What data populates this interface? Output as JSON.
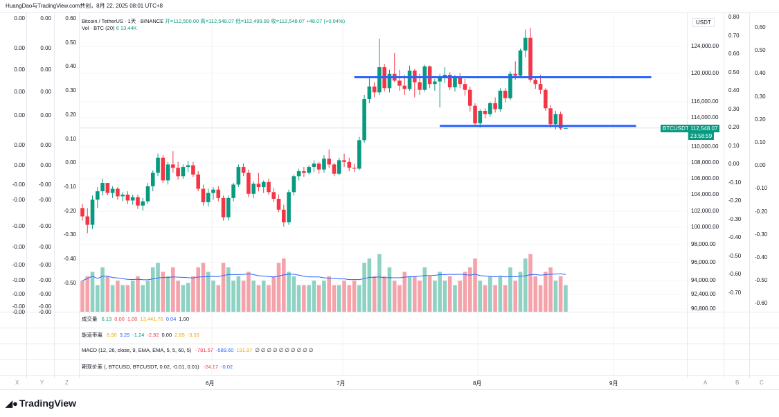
{
  "header": {
    "credit": "HuangDao与TradingView.com共创，8月 22, 2025 08:01 UTC+8"
  },
  "legend": {
    "symbol": "Bitcoin / TetherUS · 1天 · BINANCE",
    "open": "开=112,500.00",
    "high": "高=112,548.07",
    "low": "低=112,499.99",
    "close": "收=112,548.07",
    "change": "+48.07 (+0.04%)",
    "volume_label": "Vol · BTC (20)",
    "volume_values": "6  13.44K"
  },
  "left_columns": {
    "col1": [
      "0.00",
      "0.00",
      "0.00",
      "0.00",
      "0.00",
      "0.00",
      "0.00",
      "-0.00",
      "-0.00",
      "-0.00",
      "-0.00",
      "-0.00",
      "-0.00",
      "-0.00",
      "-0.00",
      "-0.00",
      "-0.00",
      "-0.00"
    ],
    "col2": [
      "0.00",
      "0.00",
      "0.00",
      "0.00",
      "0.00",
      "0.00",
      "0.00",
      "-0.00",
      "-0.00",
      "-0.00",
      "-0.00",
      "-0.00",
      "-0.00",
      "-0.00",
      "-0.00",
      "-0.00",
      "-0.00",
      "-0.00"
    ],
    "col3": [
      "0.60",
      "0.50",
      "0.40",
      "0.30",
      "0.20",
      "0.10",
      "0.00",
      "-0.10",
      "-0.20",
      "-0.30",
      "-0.40",
      "-0.50"
    ]
  },
  "right_axis": {
    "currency": "USDT",
    "prices": [
      "124,000.00",
      "120,000.00",
      "116,000.00",
      "114,000.00",
      "110,000.00",
      "108,000.00",
      "106,000.00",
      "104,000.00",
      "102,000.00",
      "100,000.00",
      "98,000.00",
      "96,000.00",
      "94,000.00",
      "92,400.00",
      "90,800.00"
    ],
    "osc1": [
      "0.80",
      "0.70",
      "0.60",
      "0.50",
      "0.40",
      "0.30",
      "0.20",
      "0.10",
      "0.00",
      "-0.10",
      "-0.20",
      "-0.30",
      "-0.40",
      "-0.50",
      "-0.60",
      "-0.70"
    ],
    "osc2": [
      "0.60",
      "0.50",
      "0.40",
      "0.30",
      "0.20",
      "0.10",
      "0.00",
      "-0.10",
      "-0.20",
      "-0.30",
      "-0.40",
      "-0.50",
      "-0.60"
    ]
  },
  "price_tag": {
    "symbol": "BTCUSDT",
    "price": "112,548.07",
    "countdown": "23:58:59"
  },
  "indicators": [
    {
      "name": "成交量",
      "values": [
        {
          "t": "6.13",
          "c": "#089981"
        },
        {
          "t": "0.00",
          "c": "#f23645"
        },
        {
          "t": "1.00",
          "c": "#f23645"
        },
        {
          "t": "13,441.76",
          "c": "#f7a600"
        },
        {
          "t": "0.04",
          "c": "#2962ff"
        },
        {
          "t": "1.00",
          "c": "#131722"
        }
      ]
    },
    {
      "name": "能道带离",
      "values": [
        {
          "t": "8.90",
          "c": "#f7a600"
        },
        {
          "t": "3.25",
          "c": "#2962ff"
        },
        {
          "t": "-1.24",
          "c": "#089981"
        },
        {
          "t": "-2.92",
          "c": "#f23645"
        },
        {
          "t": "0.00",
          "c": "#131722"
        },
        {
          "t": "2.65",
          "c": "#f7a600"
        },
        {
          "t": "-3.33",
          "c": "#f7a600"
        }
      ]
    },
    {
      "name": "MACD (12, 26, close, 9, EMA, EMA, 5, 5, 60, 5)",
      "values": [
        {
          "t": "-781.57",
          "c": "#f23645"
        },
        {
          "t": "-589.60",
          "c": "#2962ff"
        },
        {
          "t": "191.97",
          "c": "#f7a600"
        },
        {
          "t": "∅ ∅ ∅ ∅ ∅ ∅ ∅ ∅ ∅ ∅",
          "c": "#131722"
        }
      ]
    },
    {
      "name": "期现价差 (, BTCUSD, BTCUSDT, 0.02, -0.01, 0.01)",
      "values": [
        {
          "t": "-24.17",
          "c": "#f23645"
        },
        {
          "t": "-0.02",
          "c": "#2962ff"
        }
      ]
    }
  ],
  "time_axis": {
    "months": [
      "6月",
      "7月",
      "8月",
      "9月"
    ],
    "corners": [
      "X",
      "Y",
      "Z",
      "A",
      "B",
      "C"
    ]
  },
  "brand": {
    "name": "TradingView",
    "logo": "tradingview-logo-icon"
  },
  "colors": {
    "up": "#089981",
    "down": "#f23645",
    "up_vol": "#8fd1c2",
    "down_vol": "#f5a3aa",
    "trendline": "#2962ff",
    "ma": "#2962ff"
  },
  "chart_data": {
    "type": "candlestick",
    "symbol": "BTCUSDT",
    "timeframe": "1D",
    "period": "2025-05-18 to 2025-08-22",
    "ylim": [
      90800,
      126000
    ],
    "candles": [
      [
        103000,
        103500,
        101500,
        102000
      ],
      [
        102000,
        103000,
        100000,
        101000
      ],
      [
        101000,
        104500,
        100500,
        104000
      ],
      [
        104000,
        105500,
        103000,
        105000
      ],
      [
        105000,
        106500,
        104500,
        106000
      ],
      [
        106000,
        106000,
        104500,
        104800
      ],
      [
        104800,
        105600,
        104200,
        105300
      ],
      [
        105300,
        105500,
        104000,
        104400
      ],
      [
        104400,
        104900,
        103800,
        104600
      ],
      [
        104600,
        105000,
        103500,
        103900
      ],
      [
        103900,
        104600,
        103400,
        104300
      ],
      [
        104300,
        104600,
        102900,
        103300
      ],
      [
        103300,
        104200,
        102700,
        103800
      ],
      [
        103800,
        106000,
        103500,
        105600
      ],
      [
        105600,
        107500,
        105000,
        107200
      ],
      [
        107200,
        109500,
        106800,
        109000
      ],
      [
        109000,
        109300,
        106000,
        106300
      ],
      [
        106300,
        108500,
        105800,
        108200
      ],
      [
        108200,
        109800,
        107200,
        107800
      ],
      [
        107800,
        108500,
        106400,
        106800
      ],
      [
        106800,
        108200,
        106500,
        107900
      ],
      [
        107900,
        108600,
        107300,
        108100
      ],
      [
        108100,
        108500,
        106700,
        107000
      ],
      [
        107000,
        107400,
        105000,
        105300
      ],
      [
        105300,
        105800,
        103300,
        103700
      ],
      [
        103700,
        105300,
        103200,
        104800
      ],
      [
        104800,
        105500,
        104000,
        105200
      ],
      [
        105200,
        105600,
        103800,
        104200
      ],
      [
        104200,
        104500,
        101500,
        101900
      ],
      [
        101900,
        104500,
        101500,
        104200
      ],
      [
        104200,
        106000,
        103800,
        105800
      ],
      [
        105800,
        108200,
        105500,
        107900
      ],
      [
        107900,
        108300,
        106800,
        107200
      ],
      [
        107200,
        107600,
        104300,
        104700
      ],
      [
        104700,
        106200,
        104200,
        105900
      ],
      [
        105900,
        107200,
        105000,
        105500
      ],
      [
        105500,
        106300,
        104800,
        106100
      ],
      [
        106100,
        106500,
        104600,
        104900
      ],
      [
        104900,
        105400,
        103700,
        104100
      ],
      [
        104100,
        104600,
        102500,
        102800
      ],
      [
        102800,
        103400,
        100800,
        101300
      ],
      [
        101300,
        105200,
        101000,
        104900
      ],
      [
        104900,
        107000,
        104500,
        106800
      ],
      [
        106800,
        107700,
        106300,
        107400
      ],
      [
        107400,
        107900,
        106700,
        107200
      ],
      [
        107200,
        108100,
        107000,
        107900
      ],
      [
        107900,
        108700,
        107300,
        108300
      ],
      [
        108300,
        108500,
        107100,
        107600
      ],
      [
        107600,
        109300,
        107200,
        108900
      ],
      [
        108900,
        110000,
        107800,
        108200
      ],
      [
        108200,
        108400,
        106800,
        107100
      ],
      [
        107100,
        109000,
        106900,
        108700
      ],
      [
        108700,
        109500,
        107900,
        108500
      ],
      [
        108500,
        109000,
        107400,
        107800
      ],
      [
        107800,
        108300,
        107300,
        107700
      ],
      [
        107700,
        111500,
        107500,
        111100
      ],
      [
        111100,
        116500,
        110800,
        116000
      ],
      [
        116000,
        118500,
        115500,
        117500
      ],
      [
        117500,
        118000,
        116200,
        116800
      ],
      [
        116800,
        123200,
        116500,
        119800
      ],
      [
        119800,
        120200,
        116900,
        117300
      ],
      [
        117300,
        119500,
        116800,
        119000
      ],
      [
        119000,
        121500,
        118000,
        118200
      ],
      [
        118200,
        119500,
        117000,
        117600
      ],
      [
        117600,
        118900,
        116500,
        117200
      ],
      [
        117200,
        120000,
        117000,
        119400
      ],
      [
        119400,
        119600,
        116200,
        118000
      ],
      [
        118000,
        119000,
        116500,
        117100
      ],
      [
        117100,
        120100,
        116900,
        119900
      ],
      [
        119900,
        120000,
        117300,
        117800
      ],
      [
        117800,
        118400,
        117000,
        118100
      ],
      [
        118100,
        119000,
        115000,
        118600
      ],
      [
        118600,
        119800,
        117900,
        118900
      ],
      [
        118900,
        119200,
        117100,
        117400
      ],
      [
        117400,
        118900,
        116900,
        118600
      ],
      [
        118600,
        119100,
        117300,
        117800
      ],
      [
        117800,
        118400,
        116400,
        117100
      ],
      [
        117100,
        117500,
        114500,
        115200
      ],
      [
        115200,
        115500,
        112800,
        113100
      ],
      [
        113100,
        114800,
        112600,
        114600
      ],
      [
        114600,
        114900,
        113700,
        114200
      ],
      [
        114200,
        115700,
        113900,
        115500
      ],
      [
        115500,
        116200,
        114400,
        114800
      ],
      [
        114800,
        117300,
        114500,
        117000
      ],
      [
        117000,
        117300,
        115600,
        116100
      ],
      [
        116100,
        119300,
        115900,
        119000
      ],
      [
        119000,
        120500,
        118300,
        118800
      ],
      [
        118800,
        122000,
        118500,
        121800
      ],
      [
        121800,
        124300,
        121000,
        123300
      ],
      [
        123300,
        124500,
        118000,
        118300
      ],
      [
        118300,
        118700,
        117200,
        117800
      ],
      [
        117800,
        118900,
        116600,
        117100
      ],
      [
        117100,
        117300,
        114600,
        114900
      ],
      [
        114900,
        115300,
        112600,
        113000
      ],
      [
        113000,
        114600,
        112400,
        114200
      ],
      [
        114200,
        114500,
        112300,
        112500
      ],
      [
        112500,
        112550,
        112500,
        112548
      ]
    ],
    "volumes": [
      14,
      16,
      18,
      12,
      20,
      16,
      12,
      14,
      12,
      12,
      14,
      16,
      12,
      14,
      20,
      22,
      18,
      16,
      20,
      14,
      12,
      13,
      16,
      20,
      22,
      18,
      14,
      12,
      22,
      20,
      14,
      16,
      14,
      18,
      14,
      12,
      14,
      12,
      16,
      22,
      24,
      18,
      16,
      12,
      12,
      12,
      14,
      12,
      14,
      16,
      12,
      12,
      14,
      12,
      14,
      12,
      22,
      24,
      16,
      26,
      16,
      20,
      14,
      12,
      18,
      16,
      16,
      14,
      20,
      16,
      14,
      18,
      14,
      16,
      12,
      14,
      18,
      20,
      24,
      14,
      12,
      16,
      12,
      16,
      12,
      20,
      14,
      18,
      24,
      26,
      16,
      12,
      18,
      20,
      14,
      16,
      12
    ],
    "trendlines": [
      {
        "from": [
          "2025-07-11",
          118600
        ],
        "to": [
          "2025-09-08",
          118600
        ]
      },
      {
        "from": [
          "2025-07-28",
          112800
        ],
        "to": [
          "2025-09-05",
          112800
        ]
      }
    ]
  }
}
